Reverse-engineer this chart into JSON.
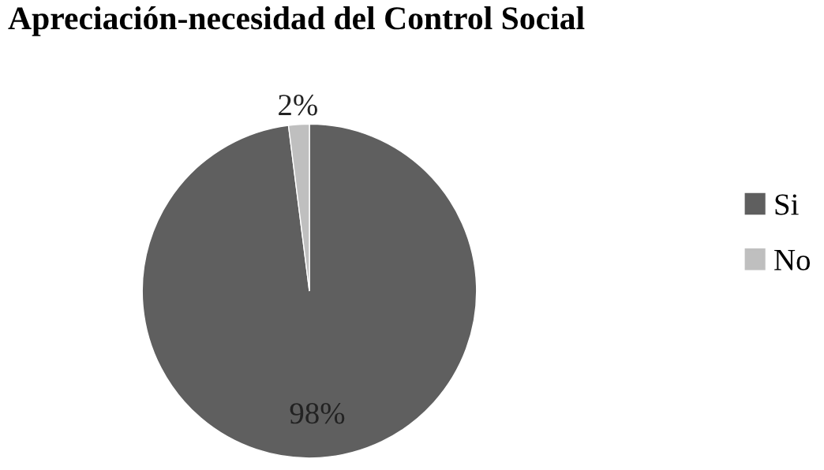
{
  "chart_data": {
    "type": "pie",
    "title": "Apreciación-necesidad del Control Social",
    "categories": [
      "Si",
      "No"
    ],
    "values": [
      98,
      2
    ],
    "colors": [
      "#5f5f5f",
      "#bfbfbf"
    ],
    "value_labels": [
      "98%",
      "2%"
    ],
    "legend": "right"
  }
}
